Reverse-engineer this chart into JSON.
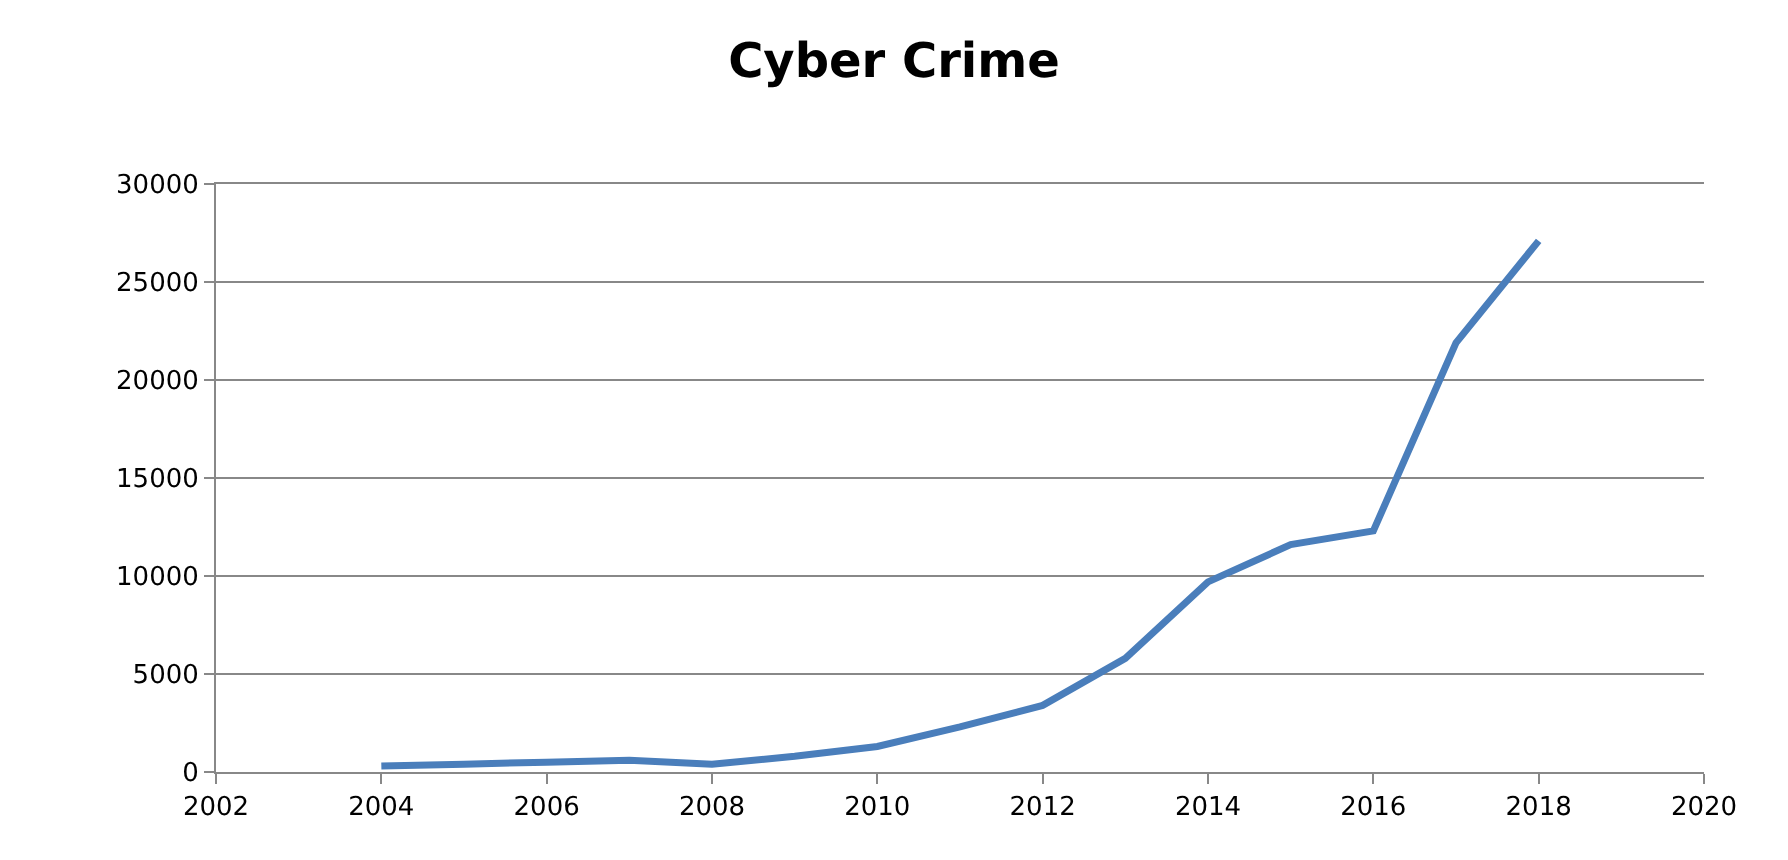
{
  "chart_data": {
    "type": "line",
    "title": "Cyber Crime",
    "x": [
      2004,
      2005,
      2006,
      2007,
      2008,
      2009,
      2010,
      2011,
      2012,
      2013,
      2014,
      2015,
      2016,
      2017,
      2018
    ],
    "series": [
      {
        "color": "#4a7ebb",
        "values": [
          300,
          400,
          500,
          600,
          400,
          800,
          1300,
          2300,
          3400,
          5800,
          9700,
          11600,
          12300,
          21900,
          27100
        ]
      }
    ],
    "xlim": [
      2002,
      2020
    ],
    "xticks": [
      2002,
      2004,
      2006,
      2008,
      2010,
      2012,
      2014,
      2016,
      2018,
      2020
    ],
    "ylim": [
      0,
      30000
    ],
    "yticks": [
      0,
      5000,
      10000,
      15000,
      20000,
      25000,
      30000
    ],
    "grid": "y",
    "marker": "none",
    "line_style": "solid"
  }
}
